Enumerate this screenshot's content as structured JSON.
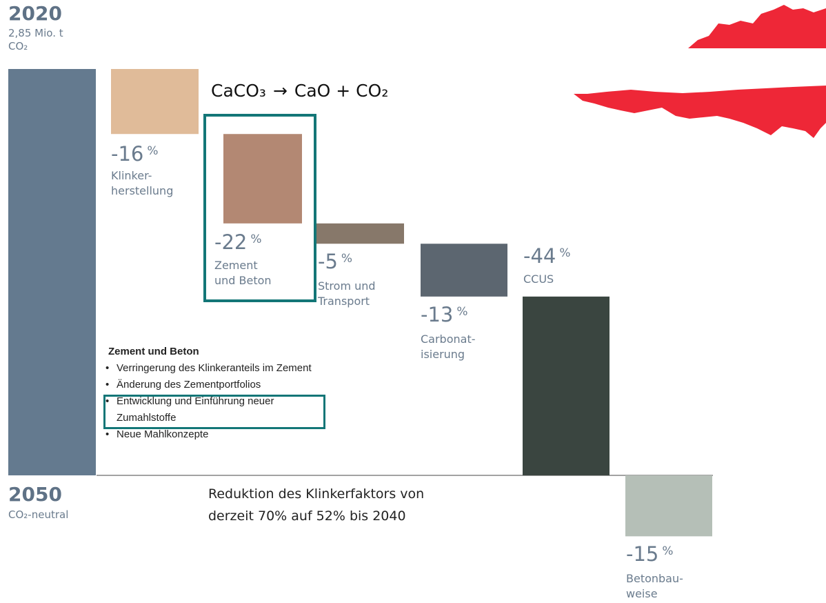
{
  "chart_data": {
    "type": "bar",
    "subtype": "waterfall",
    "start": {
      "year": "2020",
      "value_lines": [
        "2,85 Mio. t",
        "CO₂"
      ]
    },
    "end": {
      "year": "2050",
      "label": "CO₂-neutral"
    },
    "categories": [
      [
        "Klinker-",
        "herstellung"
      ],
      [
        "Zement",
        "und Beton"
      ],
      [
        "Strom und",
        "Transport"
      ],
      [
        "Carbonat-",
        "isierung"
      ],
      [
        "CCUS"
      ],
      [
        "Betonbau-",
        "weise"
      ]
    ],
    "values": [
      -16,
      -22,
      -5,
      -13,
      -44,
      -15
    ],
    "value_labels": [
      "-16",
      "-22",
      "-5",
      "-13",
      "-44",
      "-15"
    ],
    "unit": "%",
    "colors": [
      "#647a8f",
      "#e0bb99",
      "#b38873",
      "#87786a",
      "#5c6670",
      "#3a4540",
      "#b5bfb7"
    ],
    "highlight_category": "Zement und Beton",
    "highlight_color": "#137677"
  },
  "formula": {
    "parts": [
      "CaCO₃",
      "→",
      "CaO + CO₂"
    ]
  },
  "notes": {
    "title": "Zement und Beton",
    "items": [
      "Verringerung des Klinkeranteils im Zement",
      "Änderung des Zementportfolios",
      "Entwicklung und Einführung neuer Zumahlstoffe",
      "Neue Mahlkonzepte"
    ],
    "highlighted_item_lines": [
      "Entwicklung und Einführung neuer",
      "Zumahlstoffe"
    ]
  },
  "caption": {
    "lines": [
      "Reduktion des Klinkerfaktors von",
      "derzeit 70% auf 52% bis 2040"
    ]
  },
  "flag": {
    "colors": [
      "#ee2737",
      "#ffffff",
      "#ee2737"
    ],
    "icon": "austria-flag-map-icon"
  }
}
